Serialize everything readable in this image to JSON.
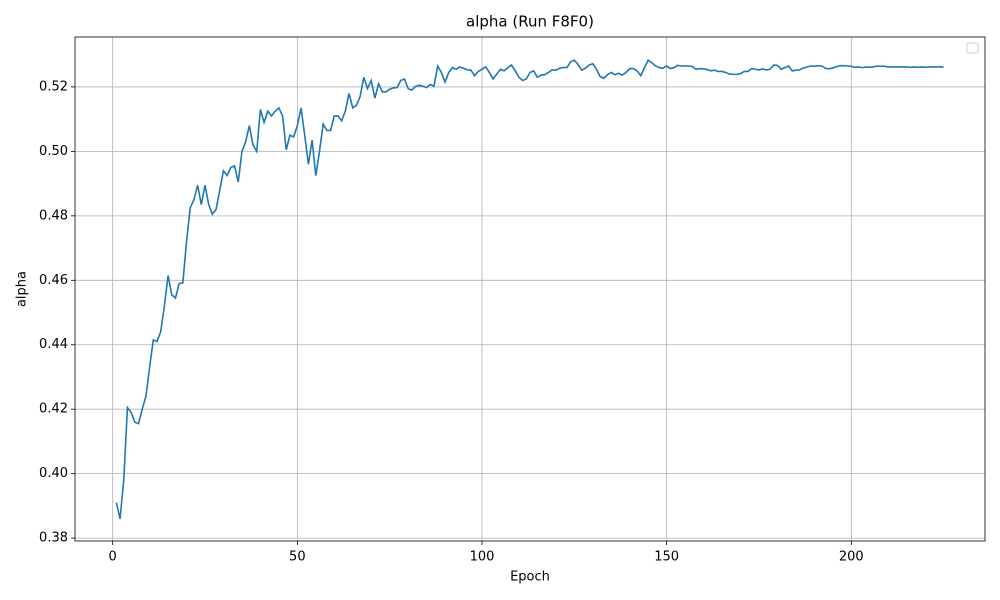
{
  "chart_data": {
    "type": "line",
    "title": "alpha (Run F8F0)",
    "xlabel": "Epoch",
    "ylabel": "alpha",
    "color": "#1f77b4",
    "grid": true,
    "xlim": [
      -10.2,
      236.2
    ],
    "ylim": [
      0.3791,
      0.5355
    ],
    "xticks": [
      0,
      50,
      100,
      150,
      200
    ],
    "yticks": [
      0.38,
      {
        "value": 0.4,
        "label": "0.40"
      },
      0.42,
      0.44,
      0.46,
      0.48,
      {
        "value": 0.5,
        "label": "0.50"
      },
      0.52
    ],
    "x": [
      1,
      2,
      3,
      4,
      5,
      6,
      7,
      8,
      9,
      10,
      11,
      12,
      13,
      14,
      15,
      16,
      17,
      18,
      19,
      20,
      21,
      22,
      23,
      24,
      25,
      26,
      27,
      28,
      29,
      30,
      31,
      32,
      33,
      34,
      35,
      36,
      37,
      38,
      39,
      40,
      41,
      42,
      43,
      44,
      45,
      46,
      47,
      48,
      49,
      50,
      51,
      52,
      53,
      54,
      55,
      56,
      57,
      58,
      59,
      60,
      61,
      62,
      63,
      64,
      65,
      66,
      67,
      68,
      69,
      70,
      71,
      72,
      73,
      74,
      75,
      76,
      77,
      78,
      79,
      80,
      81,
      82,
      83,
      84,
      85,
      86,
      87,
      88,
      89,
      90,
      91,
      92,
      93,
      94,
      95,
      96,
      97,
      98,
      99,
      100,
      101,
      102,
      103,
      104,
      105,
      106,
      107,
      108,
      109,
      110,
      111,
      112,
      113,
      114,
      115,
      116,
      117,
      118,
      119,
      120,
      121,
      122,
      123,
      124,
      125,
      126,
      127,
      128,
      129,
      130,
      131,
      132,
      133,
      134,
      135,
      136,
      137,
      138,
      139,
      140,
      141,
      142,
      143,
      144,
      145,
      146,
      147,
      148,
      149,
      150,
      151,
      152,
      153,
      154,
      155,
      156,
      157,
      158,
      159,
      160,
      161,
      162,
      163,
      164,
      165,
      166,
      167,
      168,
      169,
      170,
      171,
      172,
      173,
      174,
      175,
      176,
      177,
      178,
      179,
      180,
      181,
      182,
      183,
      184,
      185,
      186,
      187,
      188,
      189,
      190,
      191,
      192,
      193,
      194,
      195,
      196,
      197,
      198,
      199,
      200,
      201,
      202,
      203,
      204,
      205,
      206,
      207,
      208,
      209,
      210,
      211,
      212,
      213,
      214,
      215,
      216,
      217,
      218,
      219,
      220,
      221,
      222,
      223,
      224,
      225
    ],
    "values": [
      0.391,
      0.386,
      0.398,
      0.4205,
      0.419,
      0.416,
      0.4155,
      0.42,
      0.424,
      0.433,
      0.4415,
      0.441,
      0.444,
      0.452,
      0.4615,
      0.4555,
      0.4545,
      0.459,
      0.4592,
      0.472,
      0.4825,
      0.485,
      0.4895,
      0.4835,
      0.4895,
      0.4835,
      0.4805,
      0.482,
      0.488,
      0.494,
      0.4925,
      0.495,
      0.4955,
      0.4905,
      0.5,
      0.503,
      0.508,
      0.502,
      0.5,
      0.513,
      0.509,
      0.5125,
      0.511,
      0.5125,
      0.5135,
      0.511,
      0.5005,
      0.505,
      0.5045,
      0.508,
      0.5135,
      0.505,
      0.496,
      0.5035,
      0.4925,
      0.5,
      0.5085,
      0.5065,
      0.5065,
      0.511,
      0.511,
      0.5095,
      0.5125,
      0.518,
      0.5135,
      0.5143,
      0.517,
      0.523,
      0.5195,
      0.522,
      0.5165,
      0.521,
      0.5185,
      0.5185,
      0.5193,
      0.5197,
      0.5198,
      0.522,
      0.5225,
      0.5195,
      0.519,
      0.5202,
      0.5205,
      0.5202,
      0.5198,
      0.5208,
      0.5202,
      0.5265,
      0.5245,
      0.5215,
      0.5245,
      0.526,
      0.5255,
      0.5262,
      0.5258,
      0.5253,
      0.5252,
      0.5235,
      0.5248,
      0.5255,
      0.5262,
      0.5245,
      0.5225,
      0.524,
      0.5255,
      0.525,
      0.526,
      0.5268,
      0.525,
      0.523,
      0.522,
      0.5225,
      0.5245,
      0.525,
      0.523,
      0.5237,
      0.5238,
      0.5245,
      0.5253,
      0.5252,
      0.5258,
      0.526,
      0.526,
      0.5278,
      0.5283,
      0.527,
      0.5252,
      0.5258,
      0.5268,
      0.5272,
      0.5255,
      0.5232,
      0.5227,
      0.5238,
      0.5245,
      0.5238,
      0.5242,
      0.5237,
      0.5245,
      0.5257,
      0.5257,
      0.525,
      0.5235,
      0.526,
      0.5283,
      0.5275,
      0.5265,
      0.526,
      0.5258,
      0.5265,
      0.5257,
      0.526,
      0.5267,
      0.5265,
      0.5265,
      0.5265,
      0.5263,
      0.5255,
      0.5257,
      0.5256,
      0.5254,
      0.525,
      0.5252,
      0.5248,
      0.5248,
      0.5245,
      0.524,
      0.5239,
      0.5239,
      0.5241,
      0.5248,
      0.5248,
      0.5257,
      0.5255,
      0.5253,
      0.5256,
      0.5253,
      0.5255,
      0.5268,
      0.5267,
      0.5255,
      0.526,
      0.5265,
      0.525,
      0.5252,
      0.5253,
      0.5259,
      0.5262,
      0.5265,
      0.5264,
      0.5266,
      0.5265,
      0.5258,
      0.5256,
      0.5259,
      0.5263,
      0.5266,
      0.5266,
      0.5265,
      0.5264,
      0.5261,
      0.5262,
      0.526,
      0.5262,
      0.5261,
      0.5262,
      0.5265,
      0.5264,
      0.5264,
      0.5262,
      0.5262,
      0.5262,
      0.5262,
      0.5262,
      0.5262,
      0.5261,
      0.5262,
      0.5261,
      0.5262,
      0.5261,
      0.5262,
      0.5262,
      0.5262,
      0.5263,
      0.5261
    ]
  }
}
